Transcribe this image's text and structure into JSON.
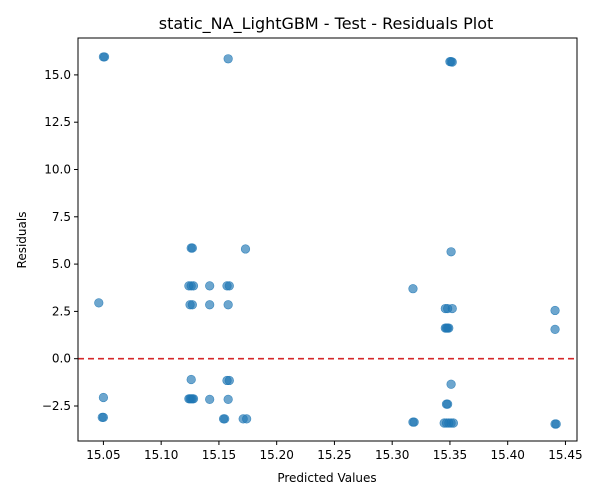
{
  "chart_data": {
    "type": "scatter",
    "title": "static_NA_LightGBM - Test - Residuals Plot",
    "xlabel": "Predicted Values",
    "ylabel": "Residuals",
    "xlim": [
      15.028,
      15.46
    ],
    "ylim": [
      -4.35,
      16.95
    ],
    "xticks": [
      "15.05",
      "15.10",
      "15.15",
      "15.20",
      "15.25",
      "15.30",
      "15.35",
      "15.40",
      "15.45"
    ],
    "yticks": [
      "−2.5",
      "0.0",
      "2.5",
      "5.0",
      "7.5",
      "10.0",
      "12.5",
      "15.0"
    ],
    "xtick_values": [
      15.05,
      15.1,
      15.15,
      15.2,
      15.25,
      15.3,
      15.35,
      15.4,
      15.45
    ],
    "ytick_values": [
      -2.5,
      0.0,
      2.5,
      5.0,
      7.5,
      10.0,
      12.5,
      15.0
    ],
    "grid": false,
    "reference_line": {
      "y": 0,
      "color": "#d62728",
      "style": "dashed"
    },
    "point_color": "#1f77b4",
    "points": [
      {
        "x": 15.05,
        "y": 15.95
      },
      {
        "x": 15.051,
        "y": 15.95
      },
      {
        "x": 15.158,
        "y": 15.85
      },
      {
        "x": 15.35,
        "y": 15.7
      },
      {
        "x": 15.351,
        "y": 15.7
      },
      {
        "x": 15.352,
        "y": 15.68
      },
      {
        "x": 15.126,
        "y": 5.85
      },
      {
        "x": 15.127,
        "y": 5.85
      },
      {
        "x": 15.173,
        "y": 5.8
      },
      {
        "x": 15.351,
        "y": 5.65
      },
      {
        "x": 15.124,
        "y": 3.85
      },
      {
        "x": 15.126,
        "y": 3.85
      },
      {
        "x": 15.128,
        "y": 3.85
      },
      {
        "x": 15.142,
        "y": 3.85
      },
      {
        "x": 15.157,
        "y": 3.85
      },
      {
        "x": 15.159,
        "y": 3.85
      },
      {
        "x": 15.318,
        "y": 3.7
      },
      {
        "x": 15.046,
        "y": 2.95
      },
      {
        "x": 15.125,
        "y": 2.85
      },
      {
        "x": 15.127,
        "y": 2.85
      },
      {
        "x": 15.142,
        "y": 2.85
      },
      {
        "x": 15.158,
        "y": 2.85
      },
      {
        "x": 15.346,
        "y": 2.65
      },
      {
        "x": 15.348,
        "y": 2.65
      },
      {
        "x": 15.352,
        "y": 2.65
      },
      {
        "x": 15.441,
        "y": 2.55
      },
      {
        "x": 15.346,
        "y": 1.62
      },
      {
        "x": 15.347,
        "y": 1.62
      },
      {
        "x": 15.348,
        "y": 1.62
      },
      {
        "x": 15.349,
        "y": 1.62
      },
      {
        "x": 15.441,
        "y": 1.55
      },
      {
        "x": 15.126,
        "y": -1.1
      },
      {
        "x": 15.157,
        "y": -1.15
      },
      {
        "x": 15.159,
        "y": -1.15
      },
      {
        "x": 15.351,
        "y": -1.35
      },
      {
        "x": 15.05,
        "y": -2.05
      },
      {
        "x": 15.124,
        "y": -2.12
      },
      {
        "x": 15.125,
        "y": -2.12
      },
      {
        "x": 15.126,
        "y": -2.12
      },
      {
        "x": 15.127,
        "y": -2.12
      },
      {
        "x": 15.128,
        "y": -2.12
      },
      {
        "x": 15.142,
        "y": -2.15
      },
      {
        "x": 15.158,
        "y": -2.15
      },
      {
        "x": 15.347,
        "y": -2.4
      },
      {
        "x": 15.348,
        "y": -2.4
      },
      {
        "x": 15.049,
        "y": -3.1
      },
      {
        "x": 15.05,
        "y": -3.1
      },
      {
        "x": 15.154,
        "y": -3.18
      },
      {
        "x": 15.155,
        "y": -3.18
      },
      {
        "x": 15.171,
        "y": -3.18
      },
      {
        "x": 15.174,
        "y": -3.18
      },
      {
        "x": 15.318,
        "y": -3.35
      },
      {
        "x": 15.319,
        "y": -3.35
      },
      {
        "x": 15.345,
        "y": -3.4
      },
      {
        "x": 15.347,
        "y": -3.4
      },
      {
        "x": 15.349,
        "y": -3.4
      },
      {
        "x": 15.351,
        "y": -3.4
      },
      {
        "x": 15.353,
        "y": -3.4
      },
      {
        "x": 15.441,
        "y": -3.45
      },
      {
        "x": 15.442,
        "y": -3.45
      }
    ]
  }
}
